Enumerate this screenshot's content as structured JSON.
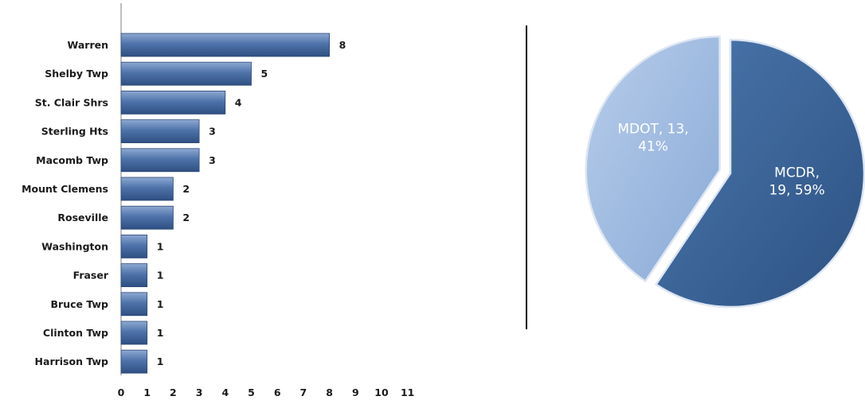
{
  "chart_data": [
    {
      "type": "bar",
      "orientation": "horizontal",
      "categories": [
        "Warren",
        "Shelby Twp",
        "St. Clair Shrs",
        "Sterling Hts",
        "Macomb Twp",
        "Mount Clemens",
        "Roseville",
        "Washington",
        "Fraser",
        "Bruce Twp",
        "Clinton Twp",
        "Harrison Twp"
      ],
      "values": [
        8,
        5,
        4,
        3,
        3,
        2,
        2,
        1,
        1,
        1,
        1,
        1
      ],
      "xticks": [
        "0",
        "1",
        "2",
        "3",
        "4",
        "5",
        "6",
        "7",
        "8",
        "9",
        "10",
        "11"
      ],
      "xlim": [
        0,
        11
      ],
      "data_labels": true,
      "grid": false,
      "color": "#4A6FA5"
    },
    {
      "type": "pie",
      "slices": [
        {
          "name": "MCDR",
          "value": 19,
          "percent": 59,
          "color": "#3C6698",
          "label_lines": [
            "MCDR,",
            "19, 59%"
          ]
        },
        {
          "name": "MDOT",
          "value": 13,
          "percent": 41,
          "color": "#9FBCE2",
          "label_lines": [
            "MDOT, 13,",
            "41%"
          ],
          "exploded": true
        }
      ]
    }
  ]
}
